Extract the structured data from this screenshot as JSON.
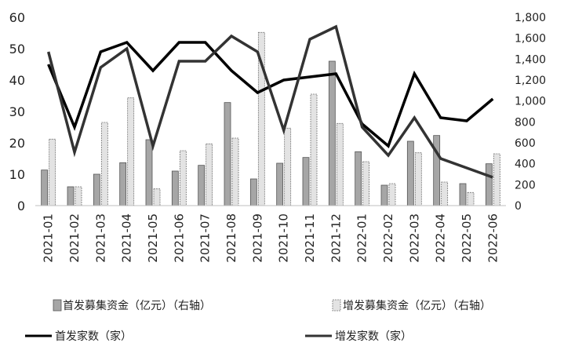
{
  "chart_data": {
    "type": "bar",
    "categories": [
      "2021-01",
      "2021-02",
      "2021-03",
      "2021-04",
      "2021-05",
      "2021-06",
      "2021-07",
      "2021-08",
      "2021-09",
      "2021-10",
      "2021-11",
      "2021-12",
      "2022-01",
      "2022-02",
      "2022-03",
      "2022-04",
      "2022-05",
      "2022-06"
    ],
    "y_left": {
      "ylim": [
        0,
        60
      ],
      "ticks": [
        "0",
        "10",
        "20",
        "30",
        "40",
        "50",
        "60"
      ]
    },
    "y_right": {
      "ylim": [
        0,
        1800
      ],
      "ticks": [
        "0",
        "200",
        "400",
        "600",
        "800",
        "1,000",
        "1,200",
        "1,400",
        "1,600",
        "1,800"
      ]
    },
    "series": [
      {
        "name": "首发募集资金（亿元）（右轴）",
        "type": "bar",
        "axis": "right",
        "color": "#a6a6a6",
        "values": [
          340,
          180,
          300,
          410,
          630,
          330,
          385,
          985,
          255,
          405,
          460,
          1380,
          515,
          195,
          615,
          670,
          210,
          400
        ]
      },
      {
        "name": "增发募集资金（亿元）（右轴）",
        "type": "bar",
        "axis": "right",
        "color": "#e3e3e3",
        "values": [
          635,
          180,
          795,
          1030,
          160,
          525,
          590,
          645,
          1655,
          740,
          1065,
          785,
          420,
          210,
          505,
          225,
          125,
          495
        ]
      },
      {
        "name": "首发家数（家）",
        "type": "line",
        "axis": "left",
        "color": "#000000",
        "values": [
          45,
          25,
          49,
          52,
          43,
          52,
          52,
          43,
          36,
          40,
          41,
          42,
          26,
          19,
          42,
          28,
          27,
          34
        ]
      },
      {
        "name": "增发家数（家）",
        "type": "line",
        "axis": "left",
        "color": "#333333",
        "values": [
          49,
          17,
          44,
          50,
          19,
          46,
          46,
          54,
          49,
          24,
          53,
          57,
          25,
          16,
          28,
          15,
          12,
          9
        ]
      }
    ]
  }
}
